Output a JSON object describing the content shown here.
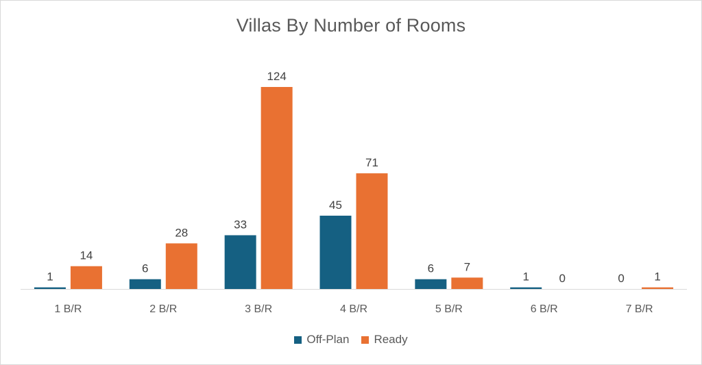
{
  "chart_data": {
    "type": "bar",
    "title": "Villas By Number of Rooms",
    "categories": [
      "1 B/R",
      "2 B/R",
      "3 B/R",
      "4 B/R",
      "5 B/R",
      "6 B/R",
      "7 B/R"
    ],
    "series": [
      {
        "name": "Off-Plan",
        "color": "#156082",
        "values": [
          1,
          6,
          33,
          45,
          6,
          1,
          0
        ]
      },
      {
        "name": "Ready",
        "color": "#E97132",
        "values": [
          14,
          28,
          124,
          71,
          7,
          0,
          1
        ]
      }
    ],
    "ylim": [
      0,
      124
    ],
    "grid": false,
    "legend_position": "bottom",
    "data_labels": true
  }
}
